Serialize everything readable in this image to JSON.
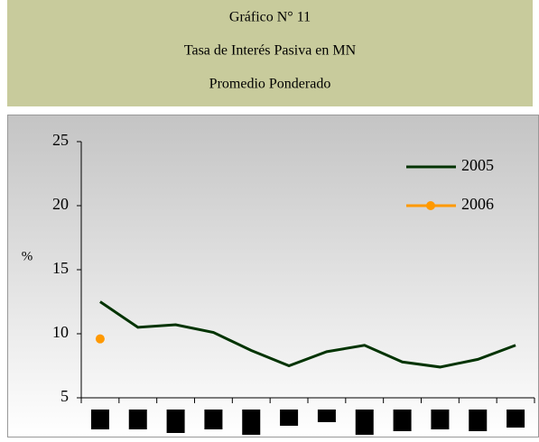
{
  "chart_data": {
    "type": "line",
    "title": "Gráfico N° 11",
    "subtitle": [
      "Tasa de Interés Pasiva en MN",
      "Promedio Ponderado"
    ],
    "y_label": "%",
    "categories": [
      null,
      null,
      null,
      null,
      null,
      null,
      null,
      null,
      null,
      null,
      null,
      null
    ],
    "series": [
      {
        "name": "2005",
        "color": "#003300",
        "values": [
          12.5,
          10.5,
          10.7,
          10.1,
          8.7,
          7.5,
          8.6,
          9.1,
          7.8,
          7.4,
          8.0,
          9.1
        ]
      },
      {
        "name": "2006",
        "color": "#ff9900",
        "values": [
          9.6,
          null,
          null,
          null,
          null,
          null,
          null,
          null,
          null,
          null,
          null,
          null
        ]
      }
    ],
    "ylim": [
      5,
      25
    ],
    "yticks": [
      5,
      10,
      15,
      20,
      25
    ],
    "legend": "upper right",
    "grid": false
  }
}
